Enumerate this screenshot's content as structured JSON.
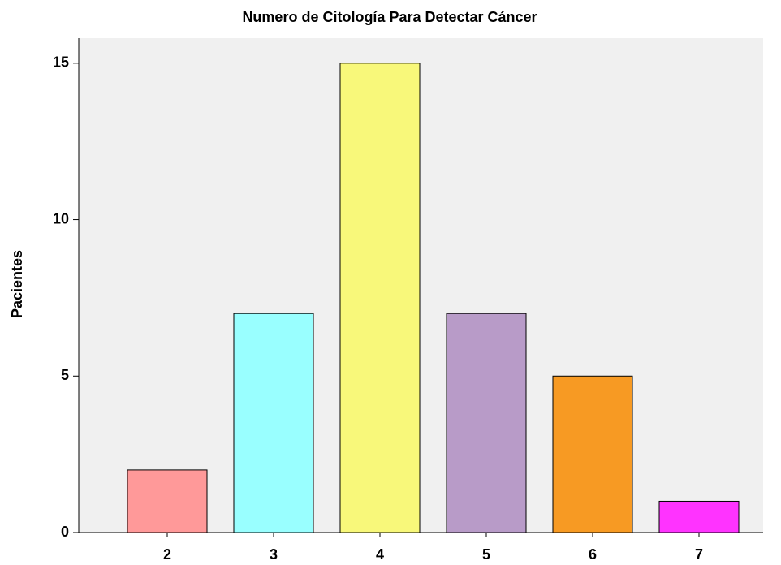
{
  "chart_data": {
    "type": "bar",
    "title": "Numero de Citología Para Detectar Cáncer",
    "y_label": "Pacientes",
    "categories": [
      "2",
      "3",
      "4",
      "5",
      "6",
      "7"
    ],
    "values": [
      2,
      7,
      15,
      7,
      5,
      1
    ],
    "colors": [
      "#ff9999",
      "#99ffff",
      "#f8f87a",
      "#b89bc8",
      "#f79a23",
      "#ff33ff"
    ],
    "ylim": [
      0,
      15.8
    ],
    "yticks": [
      0,
      5,
      10,
      15
    ],
    "grid": false
  }
}
